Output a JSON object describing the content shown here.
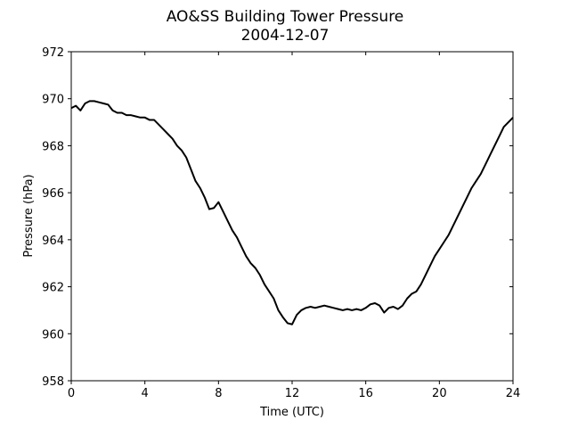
{
  "chart_data": {
    "type": "line",
    "title": "AO&SS Building Tower Pressure",
    "subtitle": "2004-12-07",
    "xlabel": "Time (UTC)",
    "ylabel": "Pressure (hPa)",
    "xlim": [
      0,
      24
    ],
    "ylim": [
      958,
      972
    ],
    "xticks": [
      0,
      4,
      8,
      12,
      16,
      20,
      24
    ],
    "yticks": [
      958,
      960,
      962,
      964,
      966,
      968,
      970,
      972
    ],
    "grid": false,
    "legend": "none",
    "line_color": "#000000",
    "series": [
      {
        "x": [
          0,
          0.25,
          0.5,
          0.75,
          1.0,
          1.25,
          1.5,
          1.75,
          2.0,
          2.25,
          2.5,
          2.75,
          3.0,
          3.25,
          3.5,
          3.75,
          4.0,
          4.25,
          4.5,
          4.75,
          5.0,
          5.25,
          5.5,
          5.75,
          6.0,
          6.25,
          6.5,
          6.75,
          7.0,
          7.25,
          7.5,
          7.75,
          8.0,
          8.25,
          8.5,
          8.75,
          9.0,
          9.25,
          9.5,
          9.75,
          10.0,
          10.25,
          10.5,
          10.75,
          11.0,
          11.25,
          11.5,
          11.75,
          12.0,
          12.25,
          12.5,
          12.75,
          13.0,
          13.25,
          13.5,
          13.75,
          14.0,
          14.25,
          14.5,
          14.75,
          15.0,
          15.25,
          15.5,
          15.75,
          16.0,
          16.25,
          16.5,
          16.75,
          17.0,
          17.25,
          17.5,
          17.75,
          18.0,
          18.25,
          18.5,
          18.75,
          19.0,
          19.25,
          19.5,
          19.75,
          20.0,
          20.25,
          20.5,
          20.75,
          21.0,
          21.25,
          21.5,
          21.75,
          22.0,
          22.25,
          22.5,
          22.75,
          23.0,
          23.25,
          23.5,
          23.75,
          24.0
        ],
        "y": [
          969.6,
          969.7,
          969.5,
          969.8,
          969.9,
          969.9,
          969.85,
          969.8,
          969.75,
          969.5,
          969.4,
          969.4,
          969.3,
          969.3,
          969.25,
          969.2,
          969.2,
          969.1,
          969.1,
          968.9,
          968.7,
          968.5,
          968.3,
          968.0,
          967.8,
          967.5,
          967.0,
          966.5,
          966.2,
          965.8,
          965.3,
          965.35,
          965.6,
          965.2,
          964.8,
          964.4,
          964.1,
          963.7,
          963.3,
          963.0,
          962.8,
          962.5,
          962.1,
          961.8,
          961.5,
          961.0,
          960.7,
          960.45,
          960.4,
          960.8,
          961.0,
          961.1,
          961.15,
          961.1,
          961.15,
          961.2,
          961.15,
          961.1,
          961.05,
          961.0,
          961.05,
          961.0,
          961.05,
          961.0,
          961.1,
          961.25,
          961.3,
          961.2,
          960.9,
          961.1,
          961.15,
          961.05,
          961.2,
          961.5,
          961.7,
          961.8,
          962.1,
          962.5,
          962.9,
          963.3,
          963.6,
          963.9,
          964.2,
          964.6,
          965.0,
          965.4,
          965.8,
          966.2,
          966.5,
          966.8,
          967.2,
          967.6,
          968.0,
          968.4,
          968.8,
          969.0,
          969.2
        ]
      }
    ]
  }
}
